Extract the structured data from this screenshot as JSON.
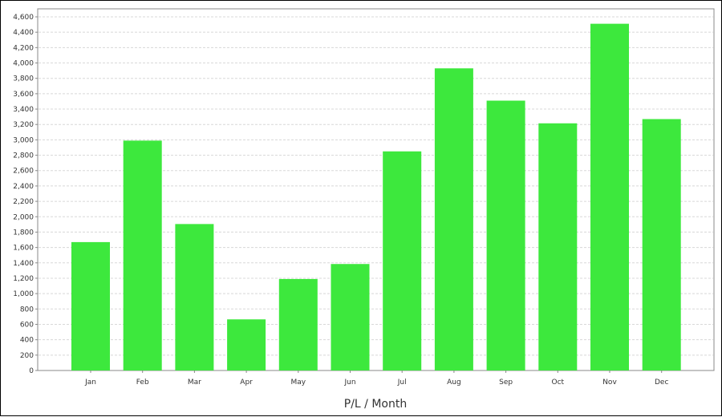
{
  "chart_data": {
    "type": "bar",
    "title": "",
    "xlabel": "P/L / Month",
    "ylabel": "",
    "categories": [
      "Jan",
      "Feb",
      "Mar",
      "Apr",
      "May",
      "Jun",
      "Jul",
      "Aug",
      "Sep",
      "Oct",
      "Nov",
      "Dec"
    ],
    "values": [
      1670,
      2990,
      1905,
      665,
      1190,
      1385,
      2850,
      3930,
      3510,
      3215,
      4510,
      3270
    ],
    "ylim": [
      0,
      4600
    ],
    "ytick_step": 200,
    "ytick_labels": [
      "0",
      "200",
      "400",
      "600",
      "800",
      "1,000",
      "1,200",
      "1,400",
      "1,600",
      "1,800",
      "2,000",
      "2,200",
      "2,400",
      "2,600",
      "2,800",
      "3,000",
      "3,200",
      "3,400",
      "3,600",
      "3,800",
      "4,000",
      "4,200",
      "4,400",
      "4,600"
    ],
    "grid": true,
    "legend": "none",
    "bar_color": "#3de83d",
    "grid_color": "#d8d8d8"
  }
}
